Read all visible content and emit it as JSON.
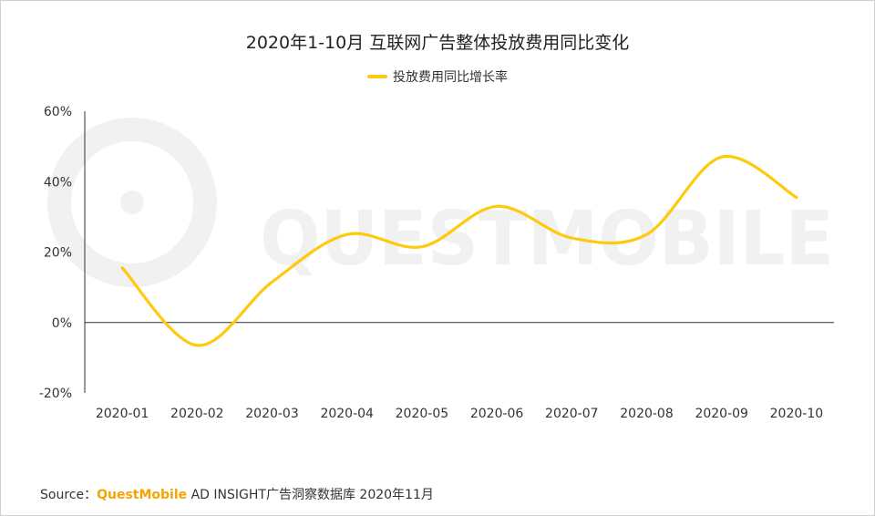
{
  "title": "2020年1-10月 互联网广告整体投放费用同比变化",
  "legend": {
    "label": "投放费用同比增长率"
  },
  "source": {
    "prefix": "Source：",
    "brand": "QuestMobile",
    "suffix": " AD INSIGHT广告洞察数据库 2020年11月"
  },
  "watermark": {
    "text": "QUESTMOBILE"
  },
  "colors": {
    "series": "#ffc90e",
    "brand": "#f5a400",
    "axis": "#333333",
    "watermark": "#f1f1f1"
  },
  "chart_data": {
    "type": "line",
    "title": "2020年1-10月 互联网广告整体投放费用同比变化",
    "categories": [
      "2020-01",
      "2020-02",
      "2020-03",
      "2020-04",
      "2020-05",
      "2020-06",
      "2020-07",
      "2020-08",
      "2020-09",
      "2020-10"
    ],
    "series": [
      {
        "name": "投放费用同比增长率",
        "values": [
          15.5,
          -6.5,
          11.5,
          25,
          21.5,
          33,
          24,
          25,
          47,
          35.5
        ]
      }
    ],
    "y_ticks": [
      60,
      40,
      20,
      0,
      -20
    ],
    "y_tick_labels": [
      "60%",
      "40%",
      "20%",
      "0%",
      "-20%"
    ],
    "ylim": [
      -20,
      60
    ],
    "grid": false,
    "smooth": true,
    "legend_position": "top-center",
    "xlabel": "",
    "ylabel": ""
  }
}
